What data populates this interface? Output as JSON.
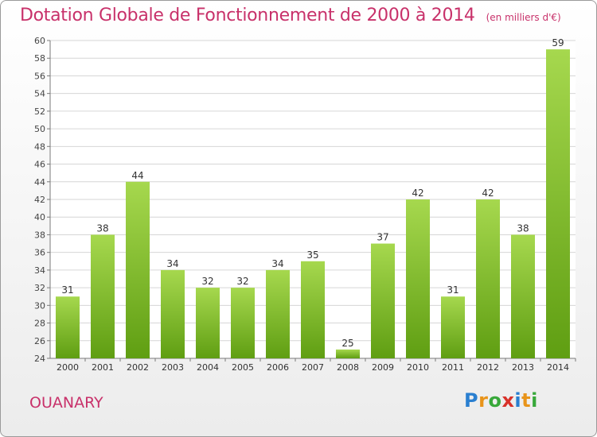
{
  "header": {
    "title": "Dotation Globale de Fonctionnement de 2000 à 2014",
    "subtitle": "(en milliers d'€)"
  },
  "footer": {
    "commune": "OUANARY",
    "logo": "Proxiti"
  },
  "colors": {
    "title": "#c8316a",
    "bar_top": "#a6d84e",
    "bar_bottom": "#5f9e12",
    "grid": "#d6d6d6",
    "axis": "#7a7a7a"
  },
  "chart_data": {
    "type": "bar",
    "categories": [
      "2000",
      "2001",
      "2002",
      "2003",
      "2004",
      "2005",
      "2006",
      "2007",
      "2008",
      "2009",
      "2010",
      "2011",
      "2012",
      "2013",
      "2014"
    ],
    "values": [
      31,
      38,
      44,
      34,
      32,
      32,
      34,
      35,
      25,
      37,
      42,
      31,
      42,
      38,
      59
    ],
    "ylim": [
      24,
      60
    ],
    "yticks": [
      24,
      26,
      28,
      30,
      32,
      34,
      36,
      38,
      40,
      42,
      44,
      46,
      48,
      50,
      52,
      54,
      56,
      58,
      60
    ],
    "grid": true,
    "legend": "none",
    "data_labels": true
  }
}
